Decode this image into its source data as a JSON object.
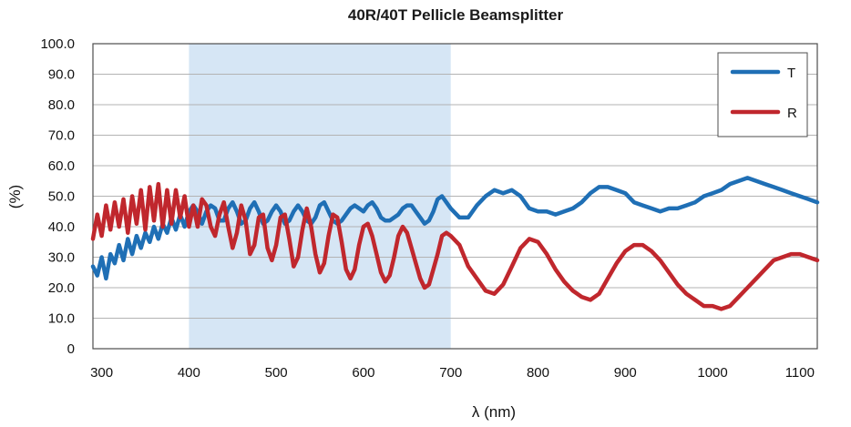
{
  "chart_data": {
    "type": "line",
    "title": "40R/40T Pellicle Beamsplitter",
    "xlabel": "λ (nm)",
    "ylabel": "(%)",
    "xlim": [
      290,
      1120
    ],
    "ylim": [
      0,
      100
    ],
    "xticks": [
      300,
      400,
      500,
      600,
      700,
      800,
      900,
      1000,
      1100
    ],
    "yticks": [
      0,
      10,
      20,
      30,
      40,
      50,
      60,
      70,
      80,
      90,
      100
    ],
    "ytick_labels": [
      "0",
      "10.0",
      "20.0",
      "30.0",
      "40.0",
      "50.0",
      "60.0",
      "70.0",
      "80.0",
      "90.0",
      "100.0"
    ],
    "grid": true,
    "legend_position": "top-right",
    "highlight_band": {
      "x_start": 400,
      "x_end": 700,
      "color": "#d6e6f5"
    },
    "series": [
      {
        "name": "T",
        "color": "#1f6fb5",
        "points": [
          [
            290,
            27
          ],
          [
            295,
            24
          ],
          [
            300,
            30
          ],
          [
            305,
            23
          ],
          [
            310,
            31
          ],
          [
            315,
            28
          ],
          [
            320,
            34
          ],
          [
            325,
            29
          ],
          [
            330,
            36
          ],
          [
            335,
            31
          ],
          [
            340,
            37
          ],
          [
            345,
            33
          ],
          [
            350,
            38
          ],
          [
            355,
            35
          ],
          [
            360,
            40
          ],
          [
            365,
            36
          ],
          [
            370,
            41
          ],
          [
            375,
            38
          ],
          [
            380,
            43
          ],
          [
            385,
            39
          ],
          [
            390,
            44
          ],
          [
            395,
            40
          ],
          [
            400,
            45
          ],
          [
            405,
            47
          ],
          [
            410,
            45
          ],
          [
            415,
            41
          ],
          [
            420,
            45
          ],
          [
            425,
            47
          ],
          [
            430,
            46
          ],
          [
            435,
            42
          ],
          [
            440,
            42
          ],
          [
            445,
            46
          ],
          [
            450,
            48
          ],
          [
            455,
            45
          ],
          [
            460,
            41
          ],
          [
            465,
            42
          ],
          [
            470,
            46
          ],
          [
            475,
            48
          ],
          [
            480,
            45
          ],
          [
            485,
            41
          ],
          [
            490,
            42
          ],
          [
            495,
            45
          ],
          [
            500,
            47
          ],
          [
            505,
            45
          ],
          [
            510,
            41
          ],
          [
            515,
            42
          ],
          [
            520,
            45
          ],
          [
            525,
            47
          ],
          [
            530,
            45
          ],
          [
            535,
            42
          ],
          [
            540,
            41
          ],
          [
            545,
            43
          ],
          [
            550,
            47
          ],
          [
            555,
            48
          ],
          [
            560,
            45
          ],
          [
            565,
            42
          ],
          [
            570,
            41
          ],
          [
            575,
            42
          ],
          [
            580,
            44
          ],
          [
            585,
            46
          ],
          [
            590,
            47
          ],
          [
            595,
            46
          ],
          [
            600,
            45
          ],
          [
            605,
            47
          ],
          [
            610,
            48
          ],
          [
            615,
            46
          ],
          [
            620,
            43
          ],
          [
            625,
            42
          ],
          [
            630,
            42
          ],
          [
            635,
            43
          ],
          [
            640,
            44
          ],
          [
            645,
            46
          ],
          [
            650,
            47
          ],
          [
            655,
            47
          ],
          [
            660,
            45
          ],
          [
            665,
            43
          ],
          [
            670,
            41
          ],
          [
            675,
            42
          ],
          [
            680,
            45
          ],
          [
            685,
            49
          ],
          [
            690,
            50
          ],
          [
            695,
            48
          ],
          [
            700,
            46
          ],
          [
            710,
            43
          ],
          [
            720,
            43
          ],
          [
            730,
            47
          ],
          [
            740,
            50
          ],
          [
            750,
            52
          ],
          [
            760,
            51
          ],
          [
            770,
            52
          ],
          [
            780,
            50
          ],
          [
            790,
            46
          ],
          [
            800,
            45
          ],
          [
            810,
            45
          ],
          [
            820,
            44
          ],
          [
            830,
            45
          ],
          [
            840,
            46
          ],
          [
            850,
            48
          ],
          [
            860,
            51
          ],
          [
            870,
            53
          ],
          [
            880,
            53
          ],
          [
            890,
            52
          ],
          [
            900,
            51
          ],
          [
            910,
            48
          ],
          [
            920,
            47
          ],
          [
            930,
            46
          ],
          [
            940,
            45
          ],
          [
            950,
            46
          ],
          [
            960,
            46
          ],
          [
            970,
            47
          ],
          [
            980,
            48
          ],
          [
            990,
            50
          ],
          [
            1000,
            51
          ],
          [
            1010,
            52
          ],
          [
            1020,
            54
          ],
          [
            1030,
            55
          ],
          [
            1040,
            56
          ],
          [
            1050,
            55
          ],
          [
            1060,
            54
          ],
          [
            1070,
            53
          ],
          [
            1080,
            52
          ],
          [
            1090,
            51
          ],
          [
            1100,
            50
          ],
          [
            1110,
            49
          ],
          [
            1120,
            48
          ]
        ]
      },
      {
        "name": "R",
        "color": "#c0272d",
        "points": [
          [
            290,
            36
          ],
          [
            295,
            44
          ],
          [
            300,
            37
          ],
          [
            305,
            47
          ],
          [
            310,
            39
          ],
          [
            315,
            48
          ],
          [
            320,
            40
          ],
          [
            325,
            49
          ],
          [
            330,
            38
          ],
          [
            335,
            50
          ],
          [
            340,
            41
          ],
          [
            345,
            52
          ],
          [
            350,
            39
          ],
          [
            355,
            53
          ],
          [
            360,
            42
          ],
          [
            365,
            54
          ],
          [
            370,
            40
          ],
          [
            375,
            52
          ],
          [
            380,
            41
          ],
          [
            385,
            52
          ],
          [
            390,
            43
          ],
          [
            395,
            50
          ],
          [
            400,
            40
          ],
          [
            405,
            47
          ],
          [
            410,
            40
          ],
          [
            415,
            49
          ],
          [
            420,
            47
          ],
          [
            425,
            40
          ],
          [
            430,
            37
          ],
          [
            435,
            44
          ],
          [
            440,
            48
          ],
          [
            445,
            40
          ],
          [
            450,
            33
          ],
          [
            455,
            38
          ],
          [
            460,
            47
          ],
          [
            465,
            42
          ],
          [
            470,
            31
          ],
          [
            475,
            34
          ],
          [
            480,
            43
          ],
          [
            485,
            44
          ],
          [
            490,
            33
          ],
          [
            495,
            29
          ],
          [
            500,
            34
          ],
          [
            505,
            43
          ],
          [
            510,
            44
          ],
          [
            515,
            36
          ],
          [
            520,
            27
          ],
          [
            525,
            30
          ],
          [
            530,
            39
          ],
          [
            535,
            46
          ],
          [
            540,
            40
          ],
          [
            545,
            31
          ],
          [
            550,
            25
          ],
          [
            555,
            28
          ],
          [
            560,
            37
          ],
          [
            565,
            44
          ],
          [
            570,
            43
          ],
          [
            575,
            35
          ],
          [
            580,
            26
          ],
          [
            585,
            23
          ],
          [
            590,
            26
          ],
          [
            595,
            34
          ],
          [
            600,
            40
          ],
          [
            605,
            41
          ],
          [
            610,
            37
          ],
          [
            615,
            31
          ],
          [
            620,
            25
          ],
          [
            625,
            22
          ],
          [
            630,
            24
          ],
          [
            635,
            30
          ],
          [
            640,
            37
          ],
          [
            645,
            40
          ],
          [
            650,
            38
          ],
          [
            655,
            33
          ],
          [
            660,
            28
          ],
          [
            665,
            23
          ],
          [
            670,
            20
          ],
          [
            675,
            21
          ],
          [
            680,
            26
          ],
          [
            685,
            31
          ],
          [
            690,
            37
          ],
          [
            695,
            38
          ],
          [
            700,
            37
          ],
          [
            710,
            34
          ],
          [
            720,
            27
          ],
          [
            730,
            23
          ],
          [
            740,
            19
          ],
          [
            750,
            18
          ],
          [
            760,
            21
          ],
          [
            770,
            27
          ],
          [
            780,
            33
          ],
          [
            790,
            36
          ],
          [
            800,
            35
          ],
          [
            810,
            31
          ],
          [
            820,
            26
          ],
          [
            830,
            22
          ],
          [
            840,
            19
          ],
          [
            850,
            17
          ],
          [
            860,
            16
          ],
          [
            870,
            18
          ],
          [
            880,
            23
          ],
          [
            890,
            28
          ],
          [
            900,
            32
          ],
          [
            910,
            34
          ],
          [
            920,
            34
          ],
          [
            930,
            32
          ],
          [
            940,
            29
          ],
          [
            950,
            25
          ],
          [
            960,
            21
          ],
          [
            970,
            18
          ],
          [
            980,
            16
          ],
          [
            990,
            14
          ],
          [
            1000,
            14
          ],
          [
            1010,
            13
          ],
          [
            1020,
            14
          ],
          [
            1030,
            17
          ],
          [
            1040,
            20
          ],
          [
            1050,
            23
          ],
          [
            1060,
            26
          ],
          [
            1070,
            29
          ],
          [
            1080,
            30
          ],
          [
            1090,
            31
          ],
          [
            1100,
            31
          ],
          [
            1110,
            30
          ],
          [
            1120,
            29
          ]
        ]
      }
    ]
  }
}
